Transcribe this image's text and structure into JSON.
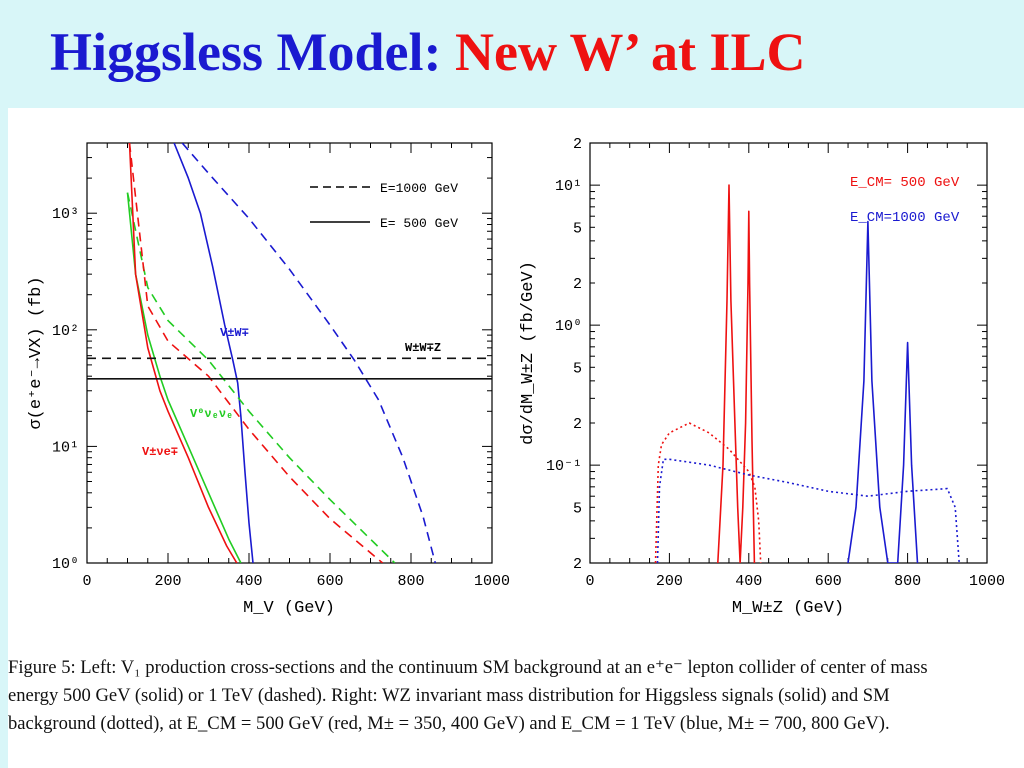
{
  "slide": {
    "title_part1": "Higgsless Model:",
    "title_part2": "New W’ at ILC",
    "title_color": "#1a1ad0",
    "accent_color": "#ee1111",
    "background": "#d8f6f8"
  },
  "caption": {
    "line1": "Figure 5: Left: V₁ production cross-sections and the continuum SM background at an e⁺e⁻ lepton collider of center of mass",
    "line2": "energy 500 GeV (solid) or 1 TeV (dashed). Right: WZ invariant mass distribution for Higgsless signals (solid) and SM",
    "line3": "background (dotted), at E_CM = 500 GeV (red, M± = 350, 400 GeV) and E_CM = 1 TeV (blue, M± = 700, 800 GeV)."
  },
  "chart_data": [
    {
      "type": "line",
      "xlabel": "M_V (GeV)",
      "ylabel": "σ(e⁺e⁻→VX) (fb)",
      "xlim": [
        0,
        1000
      ],
      "ylim": [
        1,
        4000
      ],
      "yscale": "log",
      "xticks": [
        "0",
        "200",
        "400",
        "600",
        "800",
        "1000"
      ],
      "yticks": [
        "10⁰",
        "10¹",
        "10²",
        "10³"
      ],
      "legend_position": "top-right",
      "legend": [
        "E=1000 GeV",
        "E= 500 GeV"
      ],
      "annotations": [
        "V±W∓",
        "W±W∓Z",
        "V⁰νₑνₑ",
        "V±νe∓"
      ],
      "series": [
        {
          "name": "V±W∓",
          "color": "#1a1ad0",
          "dash": "solid",
          "x": [
            215,
            250,
            280,
            310,
            340,
            360,
            372,
            380,
            390,
            400,
            410
          ],
          "y": [
            4000,
            2000,
            1000,
            350,
            110,
            55,
            35,
            18,
            6,
            2.2,
            1
          ]
        },
        {
          "name": "V±W∓",
          "color": "#1a1ad0",
          "dash": "dashed",
          "x": [
            235,
            300,
            400,
            500,
            600,
            660,
            720,
            780,
            830,
            860
          ],
          "y": [
            4000,
            2200,
            900,
            330,
            110,
            55,
            25,
            8,
            2.5,
            1
          ]
        },
        {
          "name": "V⁰νₑνₑ",
          "color": "#22cc22",
          "dash": "solid",
          "x": [
            100,
            120,
            150,
            180,
            200,
            250,
            300,
            350,
            380
          ],
          "y": [
            1500,
            300,
            90,
            40,
            25,
            10,
            4,
            1.6,
            1
          ]
        },
        {
          "name": "V⁰νₑνₑ",
          "color": "#22cc22",
          "dash": "dashed",
          "x": [
            100,
            150,
            200,
            300,
            400,
            500,
            600,
            700,
            760
          ],
          "y": [
            1500,
            230,
            120,
            55,
            20,
            8,
            3.5,
            1.6,
            1
          ]
        },
        {
          "name": "V±νe∓",
          "color": "#ee1111",
          "dash": "solid",
          "x": [
            105,
            120,
            150,
            180,
            200,
            250,
            300,
            345,
            370
          ],
          "y": [
            4000,
            300,
            70,
            30,
            20,
            8,
            3,
            1.4,
            1
          ]
        },
        {
          "name": "V±νe∓",
          "color": "#ee1111",
          "dash": "dashed",
          "x": [
            105,
            150,
            200,
            300,
            400,
            500,
            600,
            680,
            730
          ],
          "y": [
            4000,
            160,
            80,
            40,
            14,
            5.5,
            2.4,
            1.4,
            1
          ]
        },
        {
          "name": "W±W∓Z",
          "color": "#111111",
          "dash": "dashed",
          "x": [
            0,
            1000
          ],
          "y": [
            57,
            57
          ]
        },
        {
          "name": "W±W∓Z",
          "color": "#111111",
          "dash": "solid",
          "x": [
            0,
            1000
          ],
          "y": [
            38,
            38
          ]
        }
      ]
    },
    {
      "type": "line",
      "xlabel": "M_W±Z (GeV)",
      "ylabel": "dσ/dM_W±Z (fb/GeV)",
      "xlim": [
        0,
        1000
      ],
      "ylim": [
        0.02,
        20
      ],
      "yscale": "log",
      "xticks": [
        "0",
        "200",
        "400",
        "600",
        "800",
        "1000"
      ],
      "yticks": [
        "2",
        "5",
        "10⁻¹",
        "2",
        "5",
        "10⁰",
        "2",
        "5",
        "10¹",
        "2"
      ],
      "legend_position": "top-right",
      "legend": [
        "E_CM= 500 GeV",
        "E_CM=1000 GeV"
      ],
      "series": [
        {
          "name": "E_CM= 500 GeV",
          "color": "#ee1111",
          "dash": "solid",
          "x": [
            322,
            335,
            345,
            350,
            355,
            365,
            372,
            378,
            385,
            392,
            398,
            400,
            402,
            408,
            414
          ],
          "y": [
            0.02,
            0.1,
            1.5,
            10,
            1.5,
            0.2,
            0.05,
            0.02,
            0.05,
            0.2,
            2,
            6.5,
            2,
            0.15,
            0.02
          ]
        },
        {
          "name": "E_CM= 500 GeV",
          "color": "#ee1111",
          "dash": "dotted",
          "x": [
            165,
            172,
            180,
            200,
            250,
            300,
            350,
            400,
            415,
            425,
            430
          ],
          "y": [
            0.02,
            0.1,
            0.14,
            0.17,
            0.2,
            0.17,
            0.13,
            0.09,
            0.07,
            0.04,
            0.02
          ]
        },
        {
          "name": "E_CM=1000 GeV",
          "color": "#1a1ad0",
          "dash": "solid",
          "x": [
            650,
            670,
            690,
            700,
            710,
            730,
            750,
            775,
            790,
            800,
            810,
            825
          ],
          "y": [
            0.02,
            0.05,
            0.4,
            5.5,
            0.4,
            0.05,
            0.02,
            0.02,
            0.1,
            0.75,
            0.1,
            0.02
          ]
        },
        {
          "name": "E_CM=1000 GeV",
          "color": "#1a1ad0",
          "dash": "dotted",
          "x": [
            170,
            175,
            185,
            200,
            300,
            400,
            500,
            600,
            700,
            800,
            900,
            920,
            930
          ],
          "y": [
            0.02,
            0.07,
            0.11,
            0.11,
            0.1,
            0.085,
            0.075,
            0.065,
            0.06,
            0.065,
            0.068,
            0.05,
            0.02
          ]
        }
      ]
    }
  ]
}
